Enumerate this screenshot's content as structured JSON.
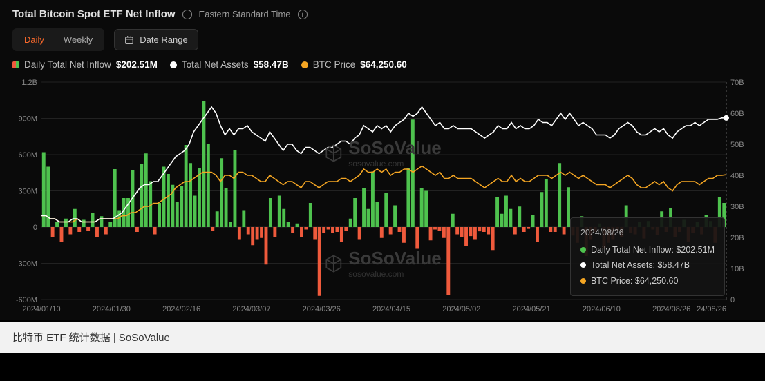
{
  "title": "Total Bitcoin Spot ETF Net Inflow",
  "timezone": "Eastern Standard Time",
  "tabs": {
    "daily": "Daily",
    "weekly": "Weekly"
  },
  "active_tab": "daily",
  "date_range_btn": "Date Range",
  "legend": {
    "inflow_label": "Daily Total Net Inflow",
    "inflow_value": "$202.51M",
    "assets_label": "Total Net Assets",
    "assets_value": "$58.47B",
    "btc_label": "BTC Price",
    "btc_value": "$64,250.60"
  },
  "colors": {
    "bar_positive": "#4ec24e",
    "bar_negative": "#ef5a3c",
    "line_assets": "#ffffff",
    "line_btc": "#f5a623",
    "background": "#0a0a0a",
    "grid": "#222222",
    "axis_text": "#888888",
    "active_tab": "#ff6b2c"
  },
  "chart": {
    "type": "bar+line",
    "left_axis": {
      "min": -600,
      "max": 1200,
      "step": 300,
      "unit": "M",
      "ticks": [
        "-600M",
        "-300M",
        "0",
        "300M",
        "600M",
        "900M",
        "1.2B"
      ]
    },
    "right_axis": {
      "min": 0,
      "max": 70,
      "step": 10,
      "unit": "B",
      "ticks": [
        "0",
        "10B",
        "20B",
        "30B",
        "40B",
        "50B",
        "60B",
        "70B"
      ]
    },
    "x_labels": [
      "2024/01/10",
      "2024/01/30",
      "2024/02/16",
      "2024/03/07",
      "2024/03/26",
      "2024/04/15",
      "2024/05/02",
      "2024/05/21",
      "2024/06/10",
      "2024/08/26"
    ],
    "x_end_label": "24/08/26",
    "bars": [
      620,
      500,
      -80,
      40,
      -120,
      70,
      -60,
      150,
      -40,
      60,
      -30,
      120,
      -80,
      90,
      -60,
      40,
      480,
      140,
      240,
      240,
      470,
      -40,
      520,
      610,
      380,
      -60,
      200,
      500,
      440,
      350,
      210,
      340,
      680,
      530,
      260,
      490,
      1040,
      690,
      -30,
      130,
      570,
      320,
      40,
      640,
      -100,
      140,
      -60,
      -150,
      -100,
      -90,
      -310,
      240,
      -80,
      260,
      150,
      40,
      -50,
      30,
      -85,
      -20,
      200,
      -100,
      -570,
      -50,
      -20,
      -50,
      -40,
      -120,
      -30,
      70,
      240,
      -100,
      320,
      150,
      460,
      210,
      -90,
      280,
      -60,
      180,
      -40,
      -130,
      490,
      890,
      -180,
      320,
      300,
      -110,
      -20,
      -30,
      -90,
      -560,
      110,
      -60,
      -85,
      -160,
      -75,
      -100,
      -35,
      -40,
      -60,
      -190,
      250,
      110,
      260,
      150,
      -60,
      170,
      -40,
      -15,
      100,
      -120,
      290,
      400,
      -40,
      -40,
      530,
      -60,
      330,
      -70,
      -130,
      90,
      -240,
      -100,
      -40,
      30,
      -180,
      -130,
      -100,
      -30,
      -80,
      180,
      -50,
      -60,
      40,
      -95,
      50,
      -20,
      -65,
      130,
      -40,
      160,
      -80,
      -40,
      60,
      -120,
      -50,
      40,
      -60,
      100,
      50,
      -130,
      250,
      200
    ],
    "assets_line": [
      27,
      27,
      26,
      26,
      25,
      25,
      25,
      26,
      26,
      25,
      25,
      25,
      25,
      26,
      26,
      26,
      26,
      27,
      28,
      30,
      32,
      34,
      36,
      37,
      37,
      38,
      38,
      40,
      42,
      44,
      46,
      47,
      48,
      50,
      54,
      56,
      58,
      60,
      62,
      60,
      56,
      53,
      55,
      53,
      55,
      55,
      56,
      54,
      53,
      52,
      51,
      54,
      52,
      50,
      48,
      50,
      50,
      48,
      47,
      49,
      49,
      48,
      47,
      48,
      49,
      49,
      50,
      51,
      51,
      50,
      52,
      53,
      56,
      55,
      54,
      56,
      55,
      56,
      54,
      56,
      57,
      58,
      60,
      59,
      60,
      62,
      60,
      58,
      56,
      57,
      55,
      55,
      56,
      55,
      55,
      55,
      55,
      54,
      53,
      52,
      53,
      54,
      56,
      55,
      55,
      57,
      55,
      56,
      55,
      55,
      56,
      58,
      57,
      57,
      56,
      58,
      60,
      58,
      60,
      58,
      56,
      57,
      56,
      55,
      53,
      53,
      53,
      52,
      53,
      55,
      56,
      57,
      56,
      54,
      53,
      53,
      54,
      55,
      54,
      55,
      53,
      52,
      54,
      55,
      56,
      56,
      57,
      56,
      57,
      58,
      58,
      58,
      58.5,
      58.47
    ],
    "btc_line": [
      27,
      27,
      26,
      26,
      25,
      25,
      25,
      25,
      26,
      25,
      25,
      25,
      25,
      26,
      26,
      26,
      26,
      26,
      27,
      27,
      28,
      28,
      29,
      30,
      30,
      31,
      31,
      32,
      33,
      34,
      36,
      37,
      38,
      38,
      39,
      40,
      41,
      41,
      41,
      40,
      38,
      40,
      40,
      39,
      41,
      41,
      40,
      40,
      39,
      38,
      38,
      40,
      39,
      38,
      37,
      38,
      38,
      37,
      36,
      38,
      38,
      37,
      36,
      37,
      38,
      38,
      38,
      39,
      39,
      38,
      39,
      40,
      42,
      41,
      41,
      42,
      41,
      42,
      40,
      41,
      41,
      42,
      42,
      41,
      42,
      43,
      42,
      41,
      40,
      41,
      39,
      39,
      40,
      39,
      39,
      39,
      39,
      38,
      37,
      36,
      37,
      38,
      39,
      38,
      38,
      40,
      38,
      39,
      38,
      38,
      39,
      40,
      40,
      40,
      39,
      40,
      41,
      40,
      41,
      40,
      39,
      40,
      39,
      38,
      37,
      37,
      37,
      36,
      37,
      38,
      39,
      40,
      39,
      37,
      36,
      36,
      37,
      38,
      37,
      38,
      36,
      35,
      37,
      38,
      38,
      38,
      38,
      37,
      38,
      39,
      39,
      40,
      40,
      40.2
    ]
  },
  "tooltip": {
    "date": "2024/08/26",
    "rows": [
      {
        "color": "#4ec24e",
        "text": "Daily Total Net Inflow: $202.51M"
      },
      {
        "color": "#ffffff",
        "text": "Total Net Assets: $58.47B"
      },
      {
        "color": "#f5a623",
        "text": "BTC Price: $64,250.60"
      }
    ]
  },
  "watermark": {
    "brand": "SoSoValue",
    "url": "sosovalue.com"
  },
  "caption": "比特币 ETF 统计数据 | SoSoValue"
}
